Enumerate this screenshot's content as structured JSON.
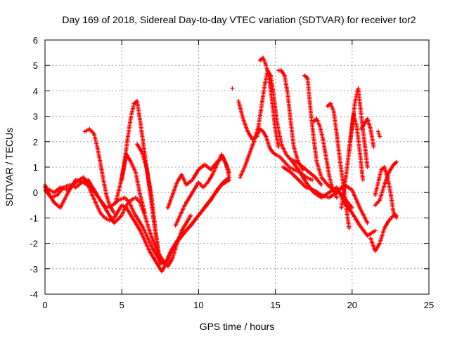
{
  "chart_data": {
    "type": "scatter",
    "title": "Day 169 of 2018, Sidereal Day-to-day VTEC variation (SDTVAR) for receiver tor2",
    "xlabel": "GPS time / hours",
    "ylabel": "SDTVAR / TECUs",
    "xlim": [
      0,
      25
    ],
    "ylim": [
      -4,
      6
    ],
    "xticks": [
      0,
      5,
      10,
      15,
      20,
      25
    ],
    "yticks": [
      -4,
      -3,
      -2,
      -1,
      0,
      1,
      2,
      3,
      4,
      5,
      6
    ],
    "grid": true,
    "marker": "plus",
    "color": "#ff0000",
    "series": [
      {
        "name": "s1",
        "x": [
          0,
          0.3,
          0.6,
          1.0,
          1.5,
          2.0,
          2.5,
          2.8,
          3.0,
          3.3,
          3.6,
          3.9,
          4.2,
          4.5,
          4.8,
          5.0,
          5.3,
          5.6,
          5.9,
          6.2,
          6.5,
          6.8,
          7.1,
          7.4,
          7.6,
          7.8,
          8.1,
          8.4,
          8.8,
          9.2,
          9.6,
          10.0,
          10.4,
          10.8,
          11.2,
          11.6,
          12.0
        ],
        "y": [
          0.2,
          0.1,
          0.0,
          0.2,
          0.1,
          0.4,
          0.6,
          0.3,
          0.0,
          -0.4,
          -0.8,
          -1.0,
          -1.1,
          -1.0,
          -0.7,
          -0.5,
          -0.6,
          -0.9,
          -1.2,
          -1.5,
          -1.9,
          -2.3,
          -2.6,
          -2.9,
          -3.1,
          -2.9,
          -2.5,
          -2.1,
          -1.8,
          -1.5,
          -1.2,
          -0.9,
          -0.6,
          -0.3,
          0.1,
          0.4,
          0.6
        ]
      },
      {
        "name": "s2",
        "x": [
          0,
          0.4,
          0.8,
          1.2,
          1.6,
          2.0,
          2.4,
          2.8,
          3.2,
          3.6,
          4.0,
          4.4,
          4.8,
          5.2,
          5.5,
          5.8,
          6.1,
          6.4,
          6.7,
          7.0,
          7.3,
          7.6,
          7.9,
          8.2,
          8.6,
          9.0,
          9.5,
          10.0,
          10.5,
          11.0,
          11.5,
          12.0
        ],
        "y": [
          0.1,
          -0.2,
          -0.1,
          0.2,
          0.3,
          0.2,
          0.4,
          0.5,
          0.1,
          -0.3,
          -0.6,
          -0.5,
          -0.3,
          -0.2,
          -0.4,
          -0.8,
          -1.1,
          -1.4,
          -1.8,
          -2.2,
          -2.5,
          -2.8,
          -2.7,
          -2.3,
          -1.9,
          -1.6,
          -1.3,
          -0.9,
          -0.5,
          -0.1,
          0.3,
          0.5
        ]
      },
      {
        "name": "s3",
        "x": [
          0,
          0.3,
          0.6,
          1.0,
          1.5,
          2.0,
          2.5,
          3.0,
          3.5,
          4.0,
          4.5,
          5.0,
          5.3,
          5.6,
          5.9,
          6.2,
          6.5,
          6.8,
          7.1,
          7.4,
          7.7,
          8.0,
          8.3,
          8.6,
          8.9,
          9.2,
          9.5
        ],
        "y": [
          0.3,
          -0.1,
          -0.4,
          -0.6,
          0.0,
          0.5,
          0.4,
          0.2,
          -0.2,
          -0.7,
          -1.2,
          -0.9,
          -0.5,
          -0.3,
          -0.2,
          -0.4,
          -0.9,
          -1.5,
          -2.0,
          -2.4,
          -2.7,
          -2.9,
          -2.6,
          -2.0,
          -1.5,
          -1.2,
          -0.9
        ]
      },
      {
        "name": "s4",
        "x": [
          2.6,
          2.9,
          3.2,
          3.4,
          3.6,
          3.8,
          4.0,
          4.2,
          4.5
        ],
        "y": [
          2.4,
          2.5,
          2.3,
          1.8,
          1.2,
          0.5,
          -0.1,
          -0.5,
          -0.8
        ]
      },
      {
        "name": "s5",
        "x": [
          4.6,
          4.9,
          5.2,
          5.4,
          5.6,
          5.8,
          6.0,
          6.2,
          6.5,
          6.8,
          7.1,
          7.4
        ],
        "y": [
          -0.4,
          0.3,
          1.3,
          2.2,
          3.0,
          3.5,
          3.6,
          2.8,
          1.5,
          0.2,
          -1.2,
          -2.4
        ]
      },
      {
        "name": "s6",
        "x": [
          5.0,
          5.3,
          5.6,
          5.9,
          6.2,
          6.5
        ],
        "y": [
          0.5,
          1.5,
          1.2,
          0.8,
          -0.1,
          -0.8
        ]
      },
      {
        "name": "s7",
        "x": [
          6.0,
          6.3,
          6.6,
          6.9,
          7.2,
          7.5
        ],
        "y": [
          1.9,
          1.6,
          1.0,
          0.0,
          -1.5,
          -2.8
        ]
      },
      {
        "name": "s8",
        "x": [
          8.0,
          8.3,
          8.6,
          8.9,
          9.2,
          9.6,
          10.0,
          10.4,
          10.8,
          11.2,
          11.6,
          12.0
        ],
        "y": [
          -0.6,
          -0.1,
          0.4,
          0.7,
          0.3,
          0.5,
          0.9,
          1.1,
          0.9,
          1.2,
          1.4,
          0.8
        ]
      },
      {
        "name": "s9",
        "x": [
          8.5,
          8.8,
          9.1,
          9.4,
          9.7,
          10.0,
          10.3,
          10.6,
          10.9,
          11.2,
          11.5,
          11.8,
          12.0
        ],
        "y": [
          -1.3,
          -0.9,
          -0.5,
          -0.2,
          0.1,
          0.4,
          0.2,
          0.4,
          0.7,
          1.1,
          1.5,
          1.1,
          0.6
        ]
      },
      {
        "name": "s10",
        "x": [
          12.2
        ],
        "y": [
          4.1
        ]
      },
      {
        "name": "s11",
        "x": [
          12.6,
          12.9,
          13.2,
          13.5,
          13.8,
          14.0,
          14.2,
          14.4,
          14.6,
          14.8,
          15.0,
          15.3,
          15.6,
          15.9,
          16.2,
          16.6,
          17.0,
          17.4
        ],
        "y": [
          3.6,
          2.9,
          2.4,
          2.1,
          2.2,
          2.5,
          2.4,
          2.2,
          1.8,
          1.6,
          1.5,
          1.4,
          1.2,
          1.0,
          0.9,
          0.8,
          0.6,
          0.5
        ]
      },
      {
        "name": "s12",
        "x": [
          12.7,
          13.0,
          13.3,
          13.6,
          13.9,
          14.1,
          14.3,
          14.5,
          14.7,
          14.9,
          15.1,
          15.4,
          15.7,
          16.0,
          16.4,
          16.8,
          17.2,
          17.6,
          18.0
        ],
        "y": [
          0.6,
          1.0,
          1.5,
          2.0,
          2.6,
          3.4,
          4.2,
          4.8,
          4.6,
          3.8,
          2.8,
          1.9,
          1.5,
          1.3,
          1.2,
          1.0,
          0.8,
          0.6,
          0.3
        ]
      },
      {
        "name": "s13",
        "x": [
          14.0,
          14.2,
          14.4,
          14.6,
          14.8,
          15.0,
          15.2
        ],
        "y": [
          5.2,
          5.3,
          5.0,
          4.5,
          3.5,
          2.5,
          1.8
        ]
      },
      {
        "name": "s14",
        "x": [
          15.2,
          15.4,
          15.6,
          15.8,
          16.0,
          16.2,
          16.5,
          16.8
        ],
        "y": [
          4.8,
          4.8,
          4.6,
          3.9,
          2.8,
          1.8,
          1.2,
          0.9
        ]
      },
      {
        "name": "s15",
        "x": [
          16.9,
          17.1,
          17.3,
          17.5,
          17.7,
          18.0,
          18.4,
          18.8,
          19.2,
          19.6,
          20.0
        ],
        "y": [
          4.6,
          4.5,
          3.2,
          2.1,
          1.2,
          0.6,
          0.3,
          0.1,
          0.0,
          -0.3,
          -0.6
        ]
      },
      {
        "name": "s16",
        "x": [
          16.0,
          16.5,
          17.0,
          17.5,
          18.0,
          18.5,
          19.0,
          19.5,
          20.0,
          20.5,
          21.0,
          21.5
        ],
        "y": [
          1.3,
          0.9,
          0.4,
          0.0,
          -0.2,
          0.0,
          0.2,
          -0.4,
          -0.8,
          -1.3,
          -1.7,
          -1.5
        ]
      },
      {
        "name": "s17",
        "x": [
          15.5,
          16.0,
          16.5,
          17.0,
          17.5,
          18.0,
          18.5,
          19.0,
          19.5,
          20.0,
          20.5,
          21.0
        ],
        "y": [
          1.0,
          0.8,
          0.5,
          0.2,
          0.1,
          -0.1,
          -0.2,
          0.0,
          0.3,
          0.1,
          -0.6,
          -1.2
        ]
      },
      {
        "name": "s18",
        "x": [
          17.5,
          17.7,
          17.9,
          18.1,
          18.3,
          18.5,
          18.7,
          19.0
        ],
        "y": [
          2.8,
          2.9,
          2.6,
          2.1,
          1.4,
          0.7,
          0.2,
          -0.2
        ]
      },
      {
        "name": "s19",
        "x": [
          18.4,
          18.6,
          18.8,
          19.0,
          19.2,
          19.4,
          19.6,
          19.8
        ],
        "y": [
          3.4,
          3.5,
          3.2,
          2.3,
          1.3,
          0.4,
          -0.5,
          -1.4
        ]
      },
      {
        "name": "s20",
        "x": [
          19.3,
          19.5,
          19.7,
          19.9,
          20.1,
          20.3,
          20.5,
          20.7
        ],
        "y": [
          -0.6,
          0.2,
          1.1,
          2.2,
          3.1,
          2.6,
          1.6,
          0.5
        ]
      },
      {
        "name": "s21",
        "x": [
          19.8,
          20.0,
          20.2,
          20.4,
          20.6,
          20.8,
          21.0
        ],
        "y": [
          1.6,
          2.6,
          3.6,
          4.1,
          3.0,
          2.0,
          1.0
        ]
      },
      {
        "name": "s22",
        "x": [
          20.6,
          20.8,
          21.0,
          21.2,
          21.4
        ],
        "y": [
          2.5,
          2.7,
          2.9,
          2.5,
          1.8
        ]
      },
      {
        "name": "s23",
        "x": [
          21.5,
          21.7,
          21.9,
          22.1,
          22.3,
          22.5,
          22.7,
          22.9
        ],
        "y": [
          -0.1,
          0.4,
          0.9,
          1.0,
          0.6,
          0.0,
          -0.8,
          -1.0
        ]
      },
      {
        "name": "s24",
        "x": [
          21.2,
          21.5,
          21.8,
          22.1,
          22.4,
          22.7,
          22.9
        ],
        "y": [
          -1.8,
          -2.3,
          -2.0,
          -1.4,
          -1.1,
          -0.9,
          -0.9
        ]
      },
      {
        "name": "s25",
        "x": [
          21.5,
          21.8,
          22.1,
          22.4,
          22.7,
          22.9
        ],
        "y": [
          -0.5,
          -0.3,
          0.3,
          0.8,
          1.1,
          1.2
        ]
      },
      {
        "name": "s26",
        "x": [
          21.7,
          21.8
        ],
        "y": [
          2.4,
          2.2
        ]
      }
    ]
  }
}
